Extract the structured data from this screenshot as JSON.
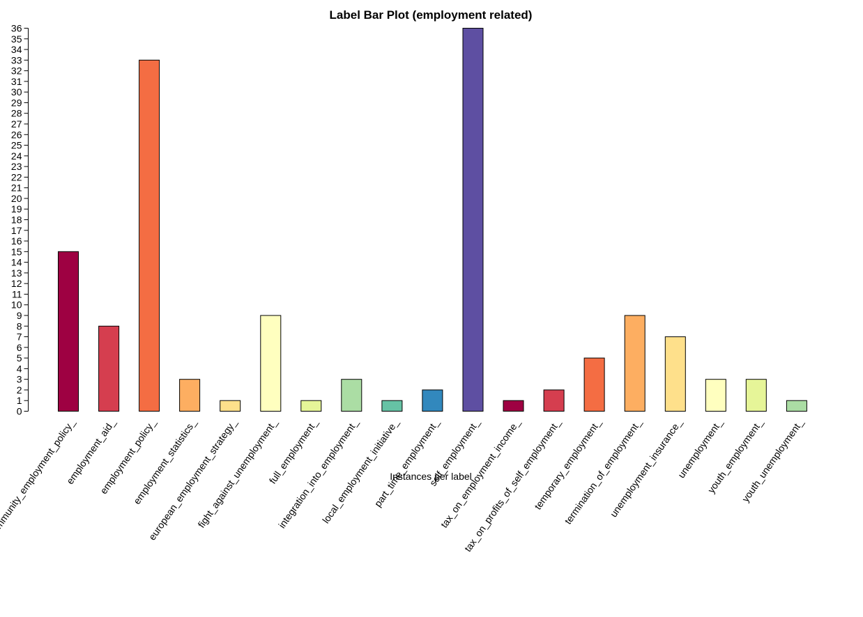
{
  "chart_data": {
    "type": "bar",
    "title": "Label Bar Plot (employment related)",
    "xlabel": "Instances per label",
    "ylabel": "",
    "ylim": [
      0,
      36
    ],
    "yticks": [
      0,
      1,
      2,
      3,
      4,
      5,
      6,
      7,
      8,
      9,
      10,
      11,
      12,
      13,
      14,
      15,
      16,
      17,
      18,
      19,
      20,
      21,
      22,
      23,
      24,
      25,
      26,
      27,
      28,
      29,
      30,
      31,
      32,
      33,
      34,
      35,
      36
    ],
    "grid": false,
    "legend": "none",
    "categories": [
      "community_employment_policy_",
      "employment_aid_",
      "employment_policy_",
      "employment_statistics_",
      "european_employment_strategy_",
      "fight_against_unemployment_",
      "full_employment_",
      "integration_into_employment_",
      "local_employment_initiative_",
      "part_time_employment_",
      "self_employment_",
      "tax_on_employment_income_",
      "tax_on_profits_of_self_employment_",
      "temporary_employment_",
      "termination_of_employment_",
      "unemployment_insurance_",
      "unemployment_",
      "youth_employment_",
      "youth_unemployment_"
    ],
    "values": [
      15,
      8,
      33,
      3,
      1,
      9,
      1,
      3,
      1,
      2,
      36,
      1,
      2,
      5,
      9,
      7,
      3,
      3,
      1
    ],
    "colors": [
      "#9E0142",
      "#D53E4F",
      "#F46D43",
      "#FDAE61",
      "#FEE08B",
      "#FFFFBF",
      "#E6F598",
      "#ABDDA4",
      "#66C2A5",
      "#3288BD",
      "#5E4FA2",
      "#9E0142",
      "#D53E4F",
      "#F46D43",
      "#FDAE61",
      "#FEE08B",
      "#FFFFBF",
      "#E6F598",
      "#ABDDA4"
    ]
  }
}
